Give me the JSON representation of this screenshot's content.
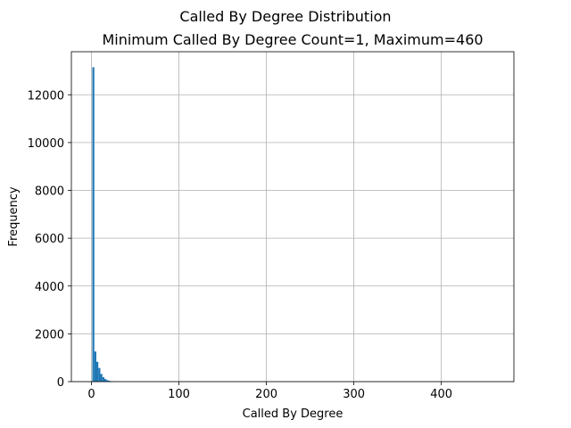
{
  "chart_data": {
    "type": "bar",
    "suptitle": "Called By Degree Distribution",
    "title": "Minimum Called By Degree Count=1, Maximum=460",
    "xlabel": "Called By Degree",
    "ylabel": "Frequency",
    "xlim": [
      -22.95,
      482.95
    ],
    "ylim": [
      0,
      13800
    ],
    "xticks": [
      0,
      100,
      200,
      300,
      400
    ],
    "yticks": [
      0,
      2000,
      4000,
      6000,
      8000,
      10000,
      12000
    ],
    "grid": true,
    "bar_color": "#1f77b4",
    "bin_width": 2.295,
    "bins": [
      {
        "x": 1.0,
        "value": 13150
      },
      {
        "x": 3.295,
        "value": 1260
      },
      {
        "x": 5.59,
        "value": 830
      },
      {
        "x": 7.885,
        "value": 570
      },
      {
        "x": 10.18,
        "value": 320
      },
      {
        "x": 12.475,
        "value": 190
      },
      {
        "x": 14.77,
        "value": 110
      },
      {
        "x": 17.065,
        "value": 60
      },
      {
        "x": 19.36,
        "value": 35
      },
      {
        "x": 21.655,
        "value": 20
      },
      {
        "x": 23.95,
        "value": 12
      },
      {
        "x": 26.245,
        "value": 8
      }
    ]
  }
}
